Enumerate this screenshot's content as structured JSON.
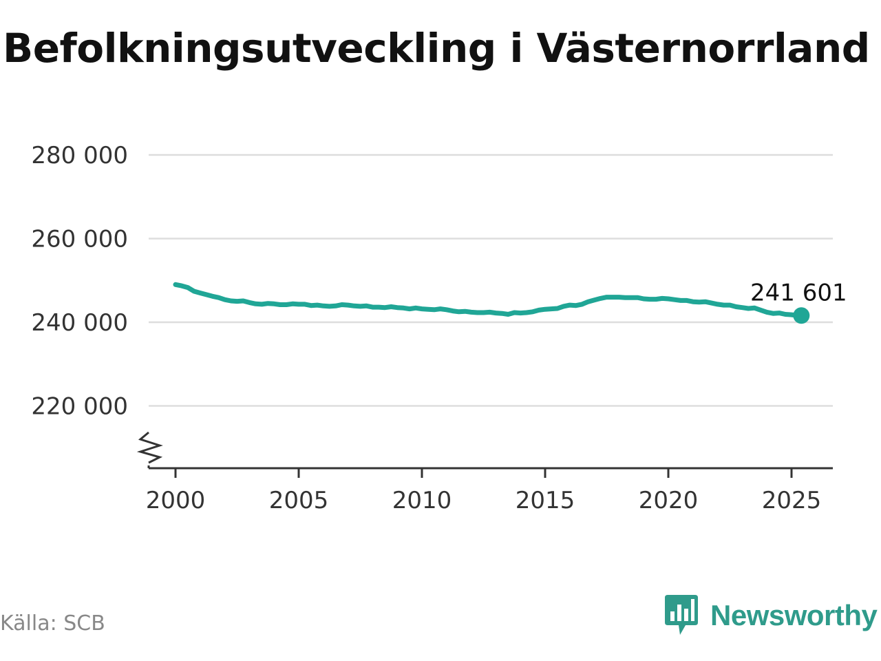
{
  "chart_data": {
    "type": "line",
    "title": "Befolkningsutveckling i Västernorrland",
    "xlabel": "",
    "ylabel": "",
    "xlim": [
      1999.8,
      2026.5
    ],
    "ylim": [
      205000,
      280000
    ],
    "y_axis_break": true,
    "grid": "horizontal",
    "yticks": [
      220000,
      240000,
      260000,
      280000
    ],
    "ytick_labels": [
      "220 000",
      "240 000",
      "260 000",
      "280 000"
    ],
    "xticks": [
      2000,
      2005,
      2010,
      2015,
      2020,
      2025
    ],
    "xtick_labels": [
      "2000",
      "2005",
      "2010",
      "2015",
      "2020",
      "2025"
    ],
    "line_color": "#20a696",
    "series": [
      {
        "x": [
          2000,
          2000.25,
          2000.5,
          2000.75,
          2001,
          2001.25,
          2001.5,
          2001.75,
          2002,
          2002.25,
          2002.5,
          2002.75,
          2003,
          2003.25,
          2003.5,
          2003.75,
          2004,
          2004.25,
          2004.5,
          2004.75,
          2005,
          2005.25,
          2005.5,
          2005.75,
          2006,
          2006.25,
          2006.5,
          2006.75,
          2007,
          2007.25,
          2007.5,
          2007.75,
          2008,
          2008.25,
          2008.5,
          2008.75,
          2009,
          2009.25,
          2009.5,
          2009.75,
          2010,
          2010.25,
          2010.5,
          2010.75,
          2011,
          2011.25,
          2011.5,
          2011.75,
          2012,
          2012.25,
          2012.5,
          2012.75,
          2013,
          2013.25,
          2013.5,
          2013.75,
          2014,
          2014.25,
          2014.5,
          2014.75,
          2015,
          2015.25,
          2015.5,
          2015.75,
          2016,
          2016.25,
          2016.5,
          2016.75,
          2017,
          2017.25,
          2017.5,
          2017.75,
          2018,
          2018.25,
          2018.5,
          2018.75,
          2019,
          2019.25,
          2019.5,
          2019.75,
          2020,
          2020.25,
          2020.5,
          2020.75,
          2021,
          2021.25,
          2021.5,
          2021.75,
          2022,
          2022.25,
          2022.5,
          2022.75,
          2023,
          2023.25,
          2023.5,
          2023.75,
          2024,
          2024.25,
          2024.5,
          2024.75,
          2025,
          2025.25,
          2025.4
        ],
        "values": [
          249000,
          248700,
          248300,
          247400,
          247000,
          246600,
          246200,
          245900,
          245400,
          245100,
          245000,
          245100,
          244700,
          244400,
          244300,
          244500,
          244400,
          244200,
          244200,
          244400,
          244300,
          244300,
          244000,
          244100,
          243900,
          243800,
          243900,
          244200,
          244100,
          243900,
          243800,
          243900,
          243600,
          243600,
          243500,
          243700,
          243500,
          243400,
          243200,
          243400,
          243200,
          243100,
          243000,
          243200,
          243000,
          242700,
          242500,
          242600,
          242400,
          242300,
          242300,
          242400,
          242200,
          242100,
          241900,
          242300,
          242200,
          242300,
          242500,
          242900,
          243100,
          243200,
          243300,
          243800,
          244100,
          244000,
          244300,
          244900,
          245300,
          245700,
          246000,
          246000,
          246000,
          245900,
          245900,
          245900,
          245600,
          245500,
          245500,
          245700,
          245600,
          245400,
          245200,
          245200,
          244900,
          244800,
          244900,
          244600,
          244300,
          244100,
          244100,
          243700,
          243500,
          243300,
          243400,
          242900,
          242400,
          242100,
          242200,
          241900,
          241800,
          241600,
          241601
        ]
      }
    ],
    "last_point": {
      "x": 2025.4,
      "value": 241601,
      "label": "241 601"
    }
  },
  "footer": {
    "source": "Källa: SCB",
    "brand": "Newsworthy",
    "brand_color": "#2f9b8b",
    "brand_icon": "bar-chart-speech-bubble-icon"
  }
}
